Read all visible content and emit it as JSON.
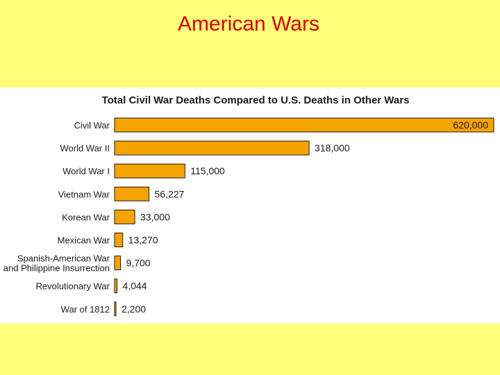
{
  "slide": {
    "title": "American Wars"
  },
  "colors": {
    "background": "#ffff7a",
    "title": "#d40000",
    "bar": "#f5a300"
  },
  "chart_data": {
    "type": "bar",
    "orientation": "horizontal",
    "title": "Total Civil War Deaths Compared to U.S. Deaths in Other Wars",
    "categories": [
      "Civil War",
      "World War II",
      "World War I",
      "Vietnam War",
      "Korean War",
      "Mexican War",
      "Spanish-American War and Philippine Insurrection",
      "Revolutionary War",
      "War of 1812"
    ],
    "category_lines": [
      [
        "Civil War"
      ],
      [
        "World War II"
      ],
      [
        "World War I"
      ],
      [
        "Vietnam War"
      ],
      [
        "Korean War"
      ],
      [
        "Mexican War"
      ],
      [
        "Spanish-American War",
        "and Philippine Insurrection"
      ],
      [
        "Revolutionary War"
      ],
      [
        "War of 1812"
      ]
    ],
    "values": [
      620000,
      318000,
      115000,
      56227,
      33000,
      13270,
      9700,
      4044,
      2200
    ],
    "value_labels": [
      "620,000",
      "318,000",
      "115,000",
      "56,227",
      "33,000",
      "13,270",
      "9,700",
      "4,044",
      "2,200"
    ],
    "xlim": [
      0,
      620000
    ],
    "grid": false,
    "legend": "none"
  }
}
